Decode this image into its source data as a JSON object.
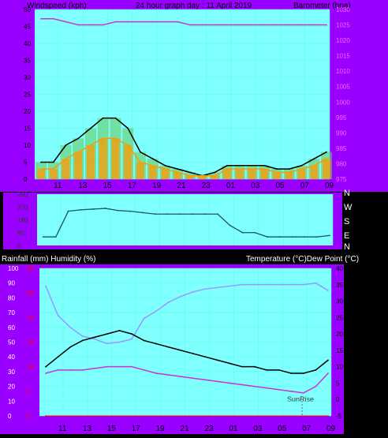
{
  "header": {
    "left": "Windspeed (kph)",
    "center": "24 hour graph day : 11 April 2019",
    "right": "Barometer (hpa)"
  },
  "lower_header": {
    "left": "Rainfall (mm)  Humidity (%)",
    "right": "Temperature (°C)Dew Point (°C)"
  },
  "sunrise_label": "SunRise",
  "compass": [
    "N",
    "W",
    "S",
    "E",
    "N"
  ],
  "hour_labels": [
    "11",
    "13",
    "15",
    "17",
    "19",
    "21",
    "23",
    "01",
    "03",
    "05",
    "07",
    "09"
  ],
  "colors": {
    "purple_bg": "#9900ff",
    "plot_bg": "#80ffff",
    "gust": "#000000",
    "wind_avg": "#ff9900",
    "wind_green": "#66cc66",
    "barometer": "#cc33cc",
    "direction": "#1a5276",
    "humidity": "#9999ff",
    "temperature": "#000000",
    "dewpoint": "#cc33cc",
    "rain_axis": "#ff0000"
  },
  "chart_data": [
    {
      "type": "line",
      "name": "wind",
      "x": [
        "10",
        "11",
        "12",
        "13",
        "14",
        "15",
        "16",
        "17",
        "18",
        "19",
        "20",
        "21",
        "22",
        "23",
        "00",
        "01",
        "02",
        "03",
        "04",
        "05",
        "06",
        "07",
        "08",
        "09"
      ],
      "series": [
        {
          "values": [
            5,
            5,
            10,
            12,
            15,
            18,
            18,
            15,
            8,
            6,
            4,
            3,
            2,
            1,
            2,
            4,
            4,
            4,
            4,
            3,
            3,
            4,
            6,
            8
          ]
        },
        {
          "values": [
            3,
            3,
            6,
            8,
            10,
            12,
            12,
            10,
            5,
            4,
            3,
            2,
            1,
            1,
            1,
            3,
            3,
            3,
            3,
            2,
            2,
            3,
            4,
            6
          ]
        }
      ],
      "ylim": [
        0,
        50
      ],
      "yticks": [
        0,
        5,
        10,
        15,
        20,
        25,
        30,
        35,
        40,
        45,
        50
      ]
    },
    {
      "type": "line",
      "name": "barometer",
      "x": [
        "10",
        "11",
        "12",
        "13",
        "14",
        "15",
        "16",
        "17",
        "18",
        "19",
        "20",
        "21",
        "22",
        "23",
        "00",
        "01",
        "02",
        "03",
        "04",
        "05",
        "06",
        "07",
        "08",
        "09"
      ],
      "values": [
        1027,
        1027,
        1026,
        1025,
        1025,
        1025,
        1026,
        1026,
        1026,
        1026,
        1026,
        1026,
        1025,
        1025,
        1025,
        1025,
        1025,
        1025,
        1025,
        1025,
        1025,
        1025,
        1025,
        1025
      ],
      "ylim": [
        975,
        1030
      ],
      "yticks": [
        975,
        980,
        985,
        990,
        995,
        1000,
        1005,
        1010,
        1015,
        1020,
        1025,
        1030
      ]
    },
    {
      "type": "line",
      "name": "wind direction",
      "x": [
        "10",
        "11",
        "12",
        "13",
        "14",
        "15",
        "16",
        "17",
        "18",
        "19",
        "20",
        "21",
        "22",
        "23",
        "00",
        "01",
        "02",
        "03",
        "04",
        "05",
        "06",
        "07",
        "08",
        "09"
      ],
      "values": [
        60,
        60,
        240,
        250,
        255,
        260,
        245,
        240,
        230,
        220,
        220,
        220,
        220,
        220,
        220,
        140,
        90,
        90,
        60,
        60,
        60,
        60,
        60,
        70
      ],
      "ylim": [
        0,
        360
      ],
      "yticks": [
        0,
        90,
        180,
        270,
        360
      ]
    },
    {
      "type": "line",
      "name": "humidity",
      "x": [
        "10",
        "11",
        "12",
        "13",
        "14",
        "15",
        "16",
        "17",
        "18",
        "19",
        "20",
        "21",
        "22",
        "23",
        "00",
        "01",
        "02",
        "03",
        "04",
        "05",
        "06",
        "07",
        "08",
        "09"
      ],
      "values": [
        88,
        68,
        60,
        54,
        52,
        49,
        50,
        52,
        66,
        71,
        77,
        81,
        84,
        86,
        87,
        88,
        89,
        89,
        89,
        89,
        89,
        89,
        90,
        85
      ],
      "ylim": [
        0,
        100
      ],
      "yticks": [
        0,
        10,
        20,
        30,
        40,
        50,
        60,
        70,
        80,
        90,
        100
      ]
    },
    {
      "type": "line",
      "name": "temperature",
      "x": [
        "10",
        "11",
        "12",
        "13",
        "14",
        "15",
        "16",
        "17",
        "18",
        "19",
        "20",
        "21",
        "22",
        "23",
        "00",
        "01",
        "02",
        "03",
        "04",
        "05",
        "06",
        "07",
        "08",
        "09"
      ],
      "values": [
        10,
        13,
        16,
        18,
        19,
        20,
        21,
        20,
        18,
        17,
        16,
        15,
        14,
        13,
        12,
        11,
        10,
        10,
        9,
        9,
        8,
        8,
        9,
        12
      ],
      "ylim": [
        -5,
        40
      ],
      "yticks": [
        -5,
        0,
        5,
        10,
        15,
        20,
        25,
        30,
        35,
        40
      ]
    },
    {
      "type": "line",
      "name": "dew point",
      "x": [
        "10",
        "11",
        "12",
        "13",
        "14",
        "15",
        "16",
        "17",
        "18",
        "19",
        "20",
        "21",
        "22",
        "23",
        "00",
        "01",
        "02",
        "03",
        "04",
        "05",
        "06",
        "07",
        "08",
        "09"
      ],
      "values": [
        8,
        9,
        9,
        9,
        9.5,
        10,
        10,
        10,
        9,
        8,
        7.5,
        7,
        6.5,
        6,
        5.5,
        5,
        4.5,
        4,
        3.5,
        3,
        2.5,
        2,
        4,
        8
      ],
      "ylim": [
        -5,
        40
      ]
    },
    {
      "type": "line",
      "name": "rainfall",
      "x": [
        "10",
        "09"
      ],
      "values": [
        0,
        0
      ],
      "ylim": [
        0,
        30
      ],
      "yticks": [
        0,
        5,
        10,
        15,
        20,
        25,
        30
      ]
    }
  ]
}
